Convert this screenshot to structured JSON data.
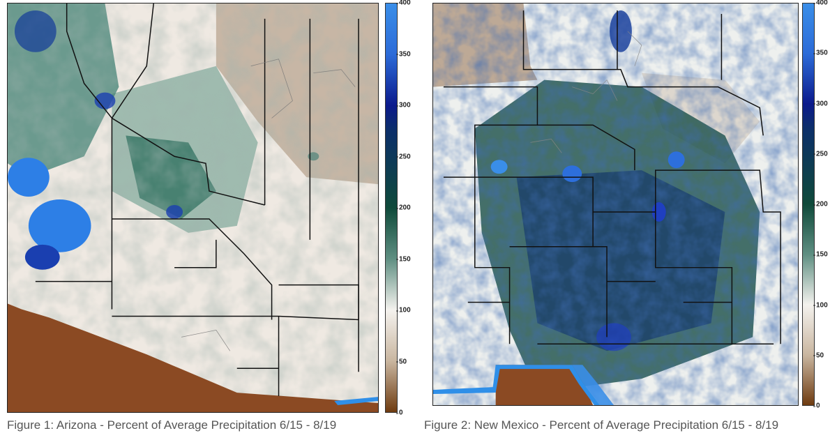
{
  "figures": [
    {
      "id": "az",
      "caption": "Figure 1: Arizona - Percent of Average Precipitation 6/15 - 8/19",
      "colorbar_ticks": [
        "400",
        "350",
        "300",
        "250",
        "200",
        "150",
        "100",
        "50",
        "0"
      ]
    },
    {
      "id": "nm",
      "caption": "Figure 2: New Mexico - Percent of Average Precipitation 6/15 - 8/19",
      "colorbar_ticks": [
        "400",
        "350",
        "300",
        "250",
        "200",
        "150",
        "100",
        "50",
        "0"
      ]
    }
  ],
  "colorbar": {
    "min": 0,
    "max": 400,
    "colors": {
      "400": "#3a8ee8",
      "300": "#0b1a8c",
      "200": "#0f4a3a",
      "150": "#5f8f82",
      "100": "#f4f2ee",
      "50": "#c9b6a0",
      "0": "#6e3b10"
    }
  },
  "legend": {
    "outside_state_color": "#8b4a23",
    "water_color": "#2f8fe8"
  }
}
